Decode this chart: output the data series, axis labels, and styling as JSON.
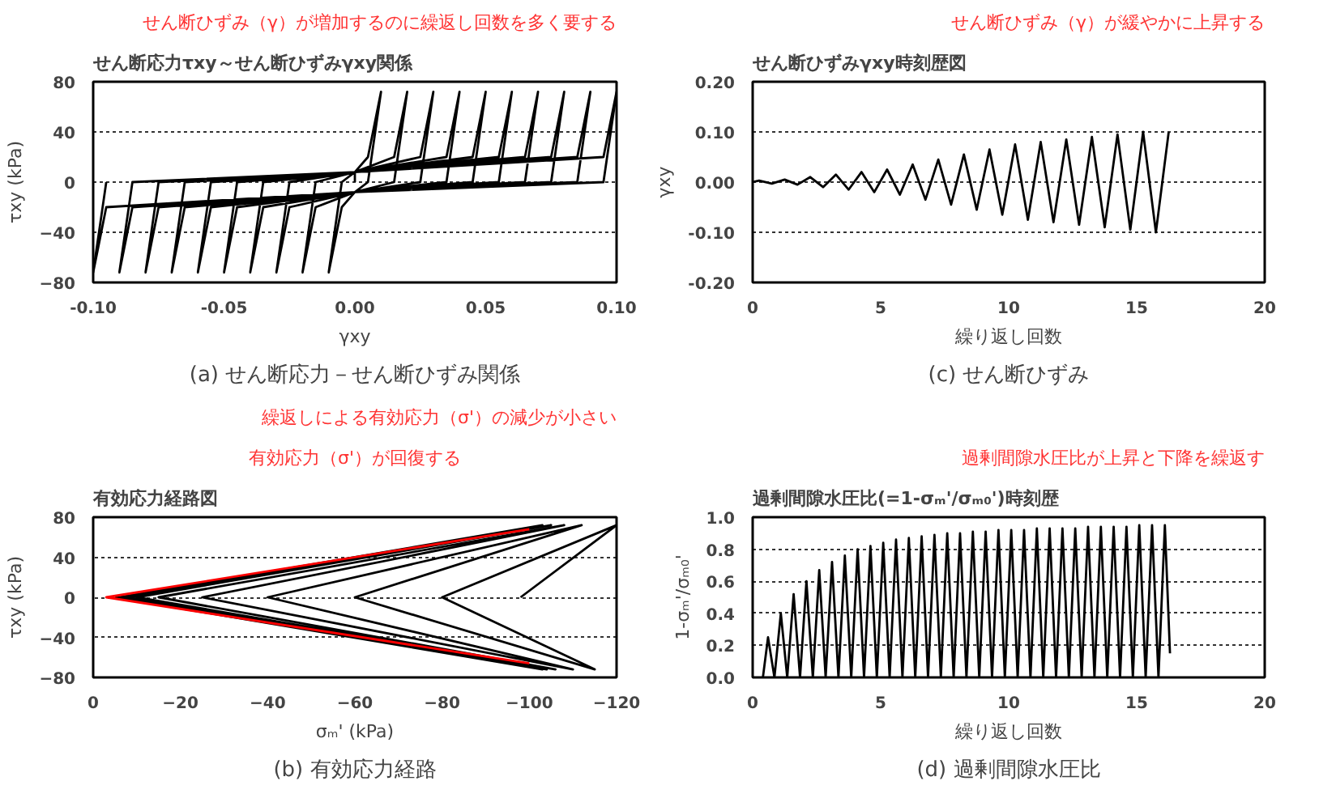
{
  "chart_data": [
    {
      "type": "line",
      "title": "せん断応力τxy～せん断ひずみγxy関係",
      "subtitle": "(a) せん断応力－せん断ひずみ関係",
      "xlabel": "γxy",
      "ylabel": "τxy (kPa)",
      "annotations": [
        "せん断ひずみ（γ）が増加するのに繰返し回数を多く要する"
      ],
      "xlim": [
        -0.1,
        0.1
      ],
      "ylim": [
        -80,
        80
      ],
      "xticks": [
        {
          "value": -0.1,
          "label": "-0.10"
        },
        {
          "value": -0.05,
          "label": "-0.05"
        },
        {
          "value": 0,
          "label": "0.00"
        },
        {
          "value": 0.05,
          "label": "0.05"
        },
        {
          "value": 0.1,
          "label": "0.10"
        }
      ],
      "yticks": [
        -80,
        -40,
        0,
        40,
        80
      ],
      "grid": "y",
      "series": [
        {
          "color": "#000000",
          "x": [
            0,
            0,
            0.005,
            0.01,
            0.005,
            0,
            -0.005,
            -0.01,
            -0.005,
            0,
            0.015,
            0.02,
            0.015,
            0,
            -0.015,
            -0.02,
            -0.015,
            0,
            0.025,
            0.03,
            0.025,
            0,
            -0.025,
            -0.03,
            -0.025,
            0,
            0.035,
            0.04,
            0.035,
            0,
            -0.035,
            -0.04,
            -0.035,
            0,
            0.045,
            0.05,
            0.045,
            0,
            -0.045,
            -0.05,
            -0.045,
            0,
            0.055,
            0.06,
            0.055,
            0,
            -0.055,
            -0.06,
            -0.055,
            0,
            0.065,
            0.07,
            0.065,
            0,
            -0.065,
            -0.07,
            -0.065,
            0,
            0.075,
            0.08,
            0.075,
            0,
            -0.075,
            -0.08,
            -0.075,
            0,
            0.085,
            0.09,
            0.085,
            0,
            -0.085,
            -0.09,
            -0.085,
            0,
            0.095,
            0.1,
            0.095,
            0,
            -0.095,
            -0.1,
            -0.095
          ],
          "values": [
            0,
            8,
            20,
            72,
            0,
            -8,
            -20,
            -72,
            0,
            8,
            20,
            72,
            0,
            -8,
            -20,
            -72,
            0,
            8,
            20,
            72,
            0,
            -8,
            -20,
            -72,
            0,
            8,
            20,
            72,
            0,
            -8,
            -20,
            -72,
            0,
            8,
            20,
            72,
            0,
            -8,
            -20,
            -72,
            0,
            8,
            20,
            72,
            0,
            -8,
            -20,
            -72,
            0,
            8,
            20,
            72,
            0,
            -8,
            -20,
            -72,
            0,
            8,
            20,
            72,
            0,
            -8,
            -20,
            -72,
            0,
            8,
            20,
            72,
            0,
            -8,
            -20,
            -72,
            0,
            8,
            20,
            72,
            0,
            -8,
            -20,
            -72,
            0
          ]
        }
      ]
    },
    {
      "type": "line",
      "title": "せん断ひずみγxy時刻歴図",
      "subtitle": "(c) せん断ひずみ",
      "xlabel": "繰り返し回数",
      "ylabel": "γxy",
      "annotations": [
        "せん断ひずみ（γ）が緩やかに上昇する"
      ],
      "xlim": [
        0,
        20
      ],
      "ylim": [
        -0.2,
        0.2
      ],
      "xticks": [
        0,
        5,
        10,
        15,
        20
      ],
      "yticks": [
        {
          "value": -0.2,
          "label": "-0.20"
        },
        {
          "value": -0.1,
          "label": "-0.10"
        },
        {
          "value": 0,
          "label": "0.00"
        },
        {
          "value": 0.1,
          "label": "0.10"
        },
        {
          "value": 0.2,
          "label": "0.20"
        }
      ],
      "grid": "y",
      "series": [
        {
          "color": "#000000",
          "x": [
            0,
            0.25,
            0.75,
            1.25,
            1.75,
            2.25,
            2.75,
            3.25,
            3.75,
            4.25,
            4.75,
            5.25,
            5.75,
            6.25,
            6.75,
            7.25,
            7.75,
            8.25,
            8.75,
            9.25,
            9.75,
            10.25,
            10.75,
            11.25,
            11.75,
            12.25,
            12.75,
            13.25,
            13.75,
            14.25,
            14.75,
            15.25,
            15.75,
            16.25
          ],
          "values": [
            0,
            0.003,
            -0.003,
            0.005,
            -0.005,
            0.01,
            -0.01,
            0.015,
            -0.015,
            0.02,
            -0.02,
            0.025,
            -0.025,
            0.035,
            -0.035,
            0.045,
            -0.045,
            0.055,
            -0.055,
            0.065,
            -0.065,
            0.075,
            -0.075,
            0.08,
            -0.08,
            0.085,
            -0.085,
            0.09,
            -0.09,
            0.095,
            -0.095,
            0.1,
            -0.1,
            0.1
          ]
        }
      ]
    },
    {
      "type": "line",
      "title": "有効応力経路図",
      "subtitle": "(b) 有効応力経路",
      "xlabel": "σₘ' (kPa)",
      "ylabel": "τxy (kPa)",
      "annotations": [
        "有効応力（σ'）が回復する",
        "繰返しによる有効応力（σ'）の減少が小さい"
      ],
      "xlim": [
        0,
        -120
      ],
      "ylim": [
        -80,
        80
      ],
      "xticks": [
        0,
        -20,
        -40,
        -60,
        -80,
        -100,
        -120
      ],
      "yticks": [
        -80,
        -40,
        0,
        40,
        80
      ],
      "grid": "y",
      "series": [
        {
          "color": "#000000",
          "x": [
            -98,
            -120,
            -80,
            -115,
            -60,
            -112,
            -40,
            -110,
            -25,
            -108,
            -15,
            -106,
            -10,
            -105,
            -8,
            -104,
            -6,
            -103,
            -6,
            -103,
            -5
          ],
          "values": [
            0,
            72,
            0,
            -72,
            0,
            72,
            0,
            -72,
            0,
            72,
            0,
            -72,
            0,
            72,
            0,
            -72,
            0,
            72,
            0,
            -72,
            0
          ]
        },
        {
          "color": "#ff0000",
          "x": [
            -100,
            -3,
            -100
          ],
          "values": [
            68,
            0,
            -66
          ]
        }
      ]
    },
    {
      "type": "line",
      "title": "過剰間隙水圧比(=1-σₘ'/σₘ₀')時刻歴",
      "subtitle": "(d) 過剰間隙水圧比",
      "xlabel": "繰り返し回数",
      "ylabel": "1-σₘ'/σₘ₀'",
      "annotations": [
        "過剰間隙水圧比が上昇と下降を繰返す"
      ],
      "xlim": [
        0,
        20
      ],
      "ylim": [
        0,
        1
      ],
      "xticks": [
        0,
        5,
        10,
        15,
        20
      ],
      "yticks": [
        {
          "value": 0,
          "label": "0.0"
        },
        {
          "value": 0.2,
          "label": "0.2"
        },
        {
          "value": 0.4,
          "label": "0.4"
        },
        {
          "value": 0.6,
          "label": "0.6"
        },
        {
          "value": 0.8,
          "label": "0.8"
        },
        {
          "value": 1,
          "label": "1.0"
        }
      ],
      "grid": "y",
      "series": [
        {
          "color": "#000000",
          "x": [
            0.4,
            0.6,
            0.85,
            1.1,
            1.35,
            1.6,
            1.85,
            2.1,
            2.35,
            2.6,
            2.85,
            3.1,
            3.35,
            3.6,
            3.85,
            4.1,
            4.35,
            4.6,
            4.85,
            5.1,
            5.35,
            5.6,
            5.85,
            6.1,
            6.35,
            6.6,
            6.85,
            7.1,
            7.35,
            7.6,
            7.85,
            8.1,
            8.35,
            8.6,
            8.85,
            9.1,
            9.35,
            9.6,
            9.85,
            10.1,
            10.35,
            10.6,
            10.85,
            11.1,
            11.35,
            11.6,
            11.85,
            12.1,
            12.35,
            12.6,
            12.85,
            13.1,
            13.35,
            13.6,
            13.85,
            14.1,
            14.35,
            14.6,
            14.85,
            15.1,
            15.35,
            15.6,
            15.85,
            16.1,
            16.3
          ],
          "values": [
            0,
            0.25,
            0,
            0.4,
            0,
            0.52,
            0,
            0.6,
            0,
            0.67,
            0,
            0.72,
            0,
            0.76,
            0,
            0.8,
            0,
            0.82,
            0,
            0.84,
            0,
            0.86,
            0,
            0.87,
            0,
            0.88,
            0,
            0.89,
            0,
            0.9,
            0,
            0.9,
            0,
            0.91,
            0,
            0.91,
            0,
            0.92,
            0,
            0.92,
            0,
            0.92,
            0,
            0.93,
            0,
            0.93,
            0,
            0.93,
            0,
            0.93,
            0,
            0.94,
            0,
            0.94,
            0,
            0.94,
            0,
            0.94,
            0,
            0.95,
            0,
            0.95,
            0,
            0.95,
            0.15
          ]
        }
      ]
    }
  ]
}
